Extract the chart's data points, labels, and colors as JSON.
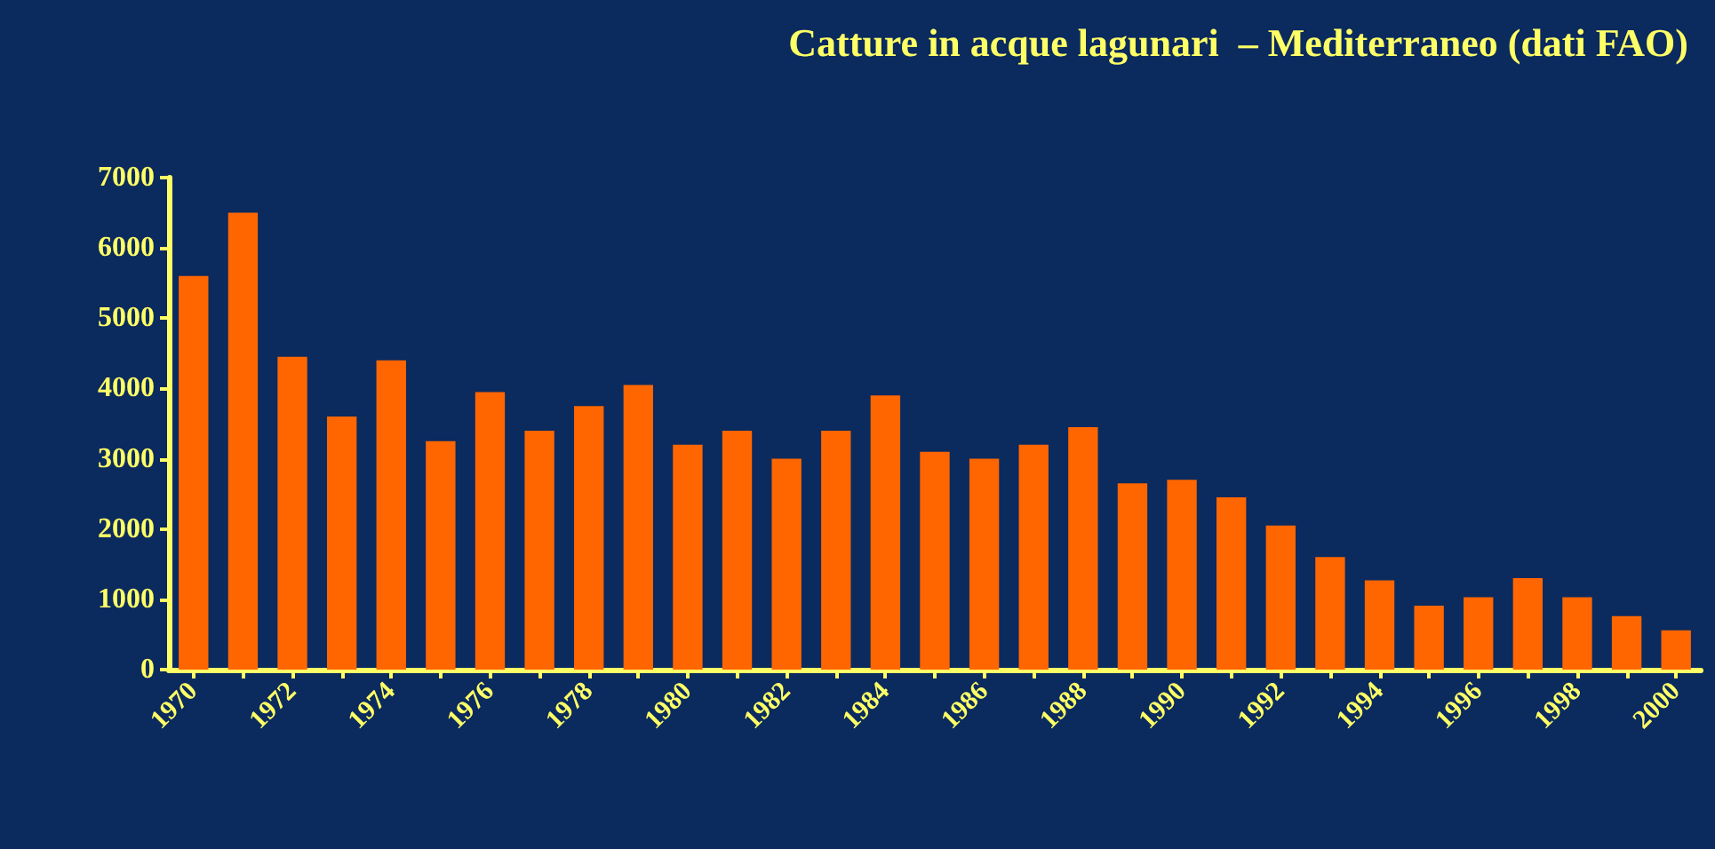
{
  "chart_data": {
    "type": "bar",
    "title": "Catture in acque lagunari  – Mediterraneo (dati FAO)",
    "categories": [
      "1970",
      null,
      "1972",
      null,
      "1974",
      null,
      "1976",
      null,
      "1978",
      null,
      "1980",
      null,
      "1982",
      null,
      "1984",
      null,
      "1986",
      null,
      "1988",
      null,
      "1990",
      null,
      "1992",
      null,
      "1994",
      null,
      "1996",
      null,
      "1998",
      null,
      "2000"
    ],
    "values": [
      5600,
      6500,
      4450,
      3600,
      4400,
      3250,
      3950,
      3400,
      3750,
      4050,
      3200,
      3400,
      3000,
      3400,
      3900,
      3100,
      3000,
      3200,
      3450,
      2650,
      2700,
      2450,
      2050,
      1600,
      1270,
      910,
      1030,
      1300,
      1030,
      760,
      560
    ],
    "color": "#ff6600",
    "ylim": [
      0,
      7000
    ],
    "yticks": [
      0,
      1000,
      2000,
      3000,
      4000,
      5000,
      6000,
      7000
    ],
    "grid": false
  }
}
